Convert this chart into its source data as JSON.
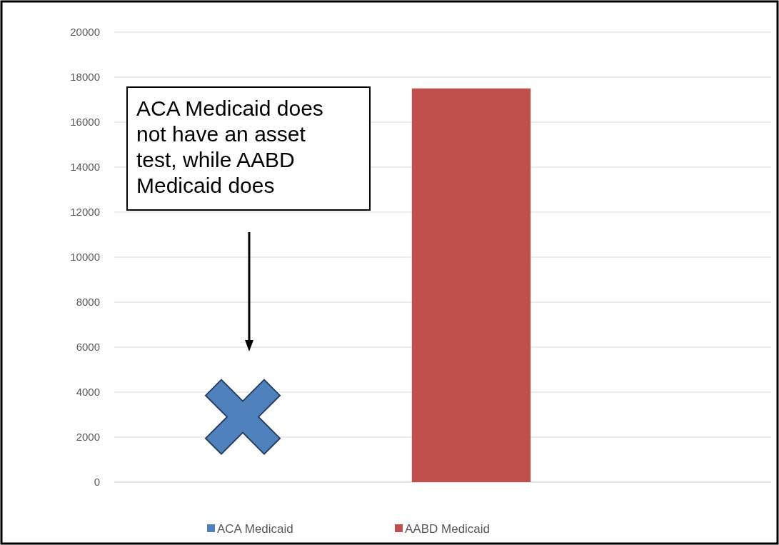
{
  "chart_data": {
    "type": "bar",
    "categories": [
      null
    ],
    "series": [
      {
        "name": "ACA Medicaid",
        "color": "#4f81bd",
        "values": [
          null
        ]
      },
      {
        "name": "AABD Medicaid",
        "color": "#c0504d",
        "values": [
          17500
        ]
      }
    ],
    "ylim": [
      0,
      20000
    ],
    "yticks": [
      0,
      2000,
      4000,
      6000,
      8000,
      10000,
      12000,
      14000,
      16000,
      18000,
      20000
    ],
    "grid": "y",
    "legend": "bottom",
    "annotations": [
      "ACA Medicaid does not have an asset test, while AABD Medicaid does"
    ]
  }
}
